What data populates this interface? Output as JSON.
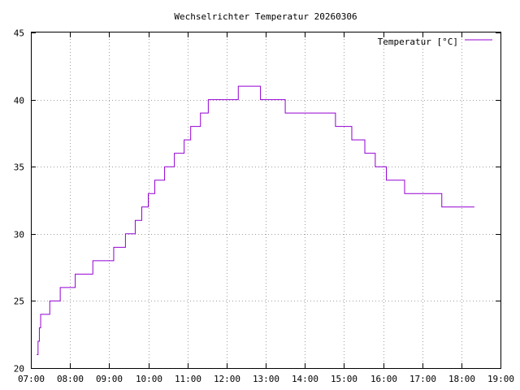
{
  "chart_data": {
    "type": "line",
    "title": "Wechselrichter Temperatur 20260306",
    "xlabel": "",
    "ylabel": "",
    "xlim": [
      "07:00",
      "19:00"
    ],
    "ylim": [
      20,
      45
    ],
    "x_ticks": [
      "07:00",
      "08:00",
      "09:00",
      "10:00",
      "11:00",
      "12:00",
      "13:00",
      "14:00",
      "15:00",
      "16:00",
      "17:00",
      "18:00",
      "19:00"
    ],
    "y_ticks": [
      20,
      25,
      30,
      35,
      40,
      45
    ],
    "grid": true,
    "legend_position": "top-right",
    "series": [
      {
        "name": "Temperatur [°C]",
        "color": "#9400d3",
        "step": true,
        "points": [
          [
            "07:09",
            21
          ],
          [
            "07:11",
            22
          ],
          [
            "07:13",
            23
          ],
          [
            "07:15",
            24
          ],
          [
            "07:29",
            25
          ],
          [
            "07:45",
            26
          ],
          [
            "08:08",
            27
          ],
          [
            "08:35",
            28
          ],
          [
            "09:07",
            29
          ],
          [
            "09:25",
            30
          ],
          [
            "09:40",
            31
          ],
          [
            "09:50",
            32
          ],
          [
            "10:00",
            33
          ],
          [
            "10:10",
            34
          ],
          [
            "10:25",
            35
          ],
          [
            "10:40",
            36
          ],
          [
            "10:55",
            37
          ],
          [
            "11:05",
            38
          ],
          [
            "11:20",
            39
          ],
          [
            "11:32",
            40
          ],
          [
            "12:18",
            41
          ],
          [
            "12:52",
            40
          ],
          [
            "13:30",
            39
          ],
          [
            "14:47",
            38
          ],
          [
            "15:12",
            37
          ],
          [
            "15:32",
            36
          ],
          [
            "15:48",
            35
          ],
          [
            "16:05",
            34
          ],
          [
            "16:33",
            33
          ],
          [
            "17:30",
            32
          ],
          [
            "18:20",
            32
          ]
        ]
      }
    ]
  }
}
